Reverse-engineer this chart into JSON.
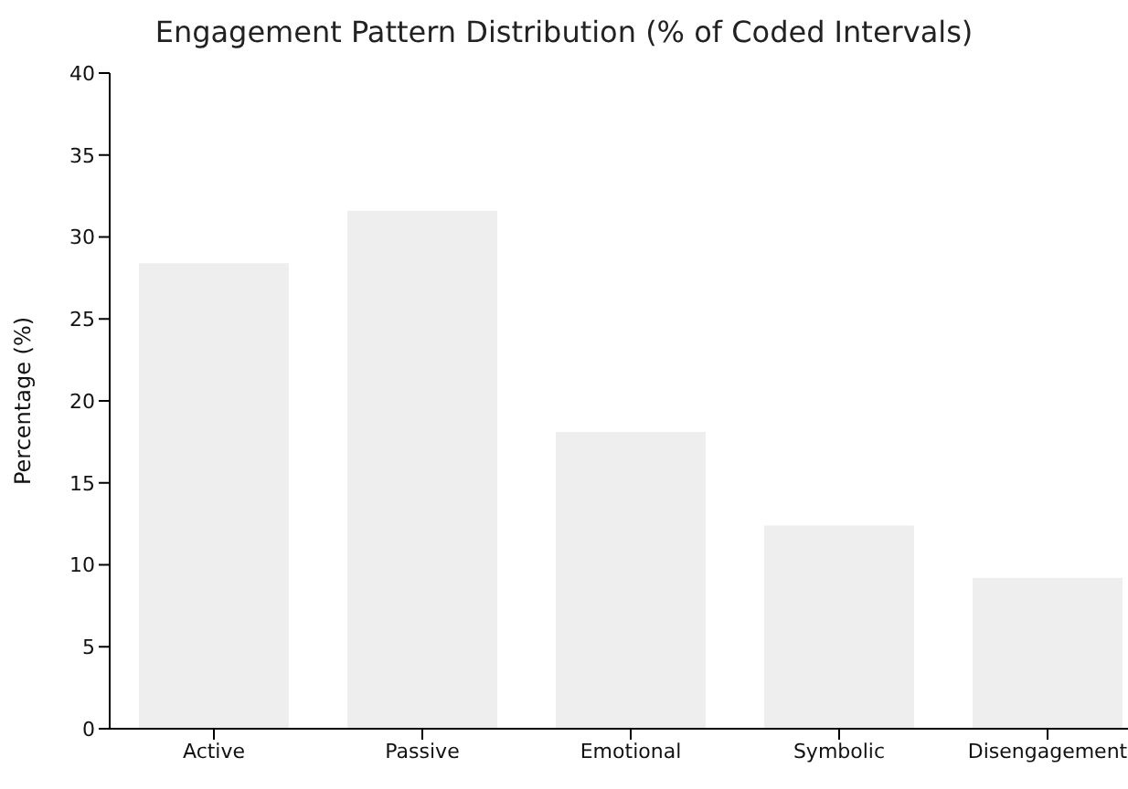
{
  "chart_data": {
    "type": "bar",
    "title": "Engagement Pattern Distribution (% of Coded Intervals)",
    "ylabel": "Percentage (%)",
    "categories": [
      "Active",
      "Passive",
      "Emotional",
      "Symbolic",
      "Disengagement"
    ],
    "values": [
      28.4,
      31.6,
      18.1,
      12.4,
      9.2
    ],
    "color": "#eeeeee",
    "ylim": [
      0,
      40
    ],
    "yticks": [
      0,
      5,
      10,
      15,
      20,
      25,
      30,
      35,
      40
    ],
    "grid": false,
    "legend": false
  }
}
